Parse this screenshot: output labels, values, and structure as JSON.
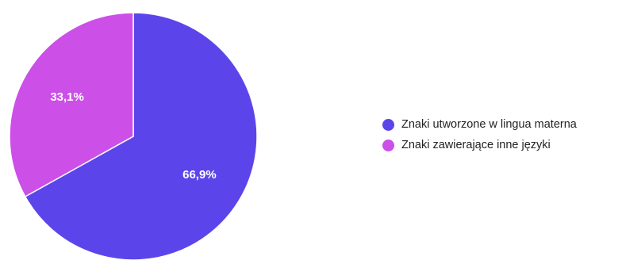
{
  "chart_data": {
    "type": "pie",
    "categories": [
      "Znaki utworzone w lingua materna",
      "Znaki zawierające inne języki"
    ],
    "values": [
      66.9,
      33.1
    ],
    "labels": [
      "66,9%",
      "33,1%"
    ],
    "colors": [
      "#5b45ea",
      "#cc4fe8"
    ],
    "legend_placement": "right",
    "start_angle": "top, clockwise"
  }
}
